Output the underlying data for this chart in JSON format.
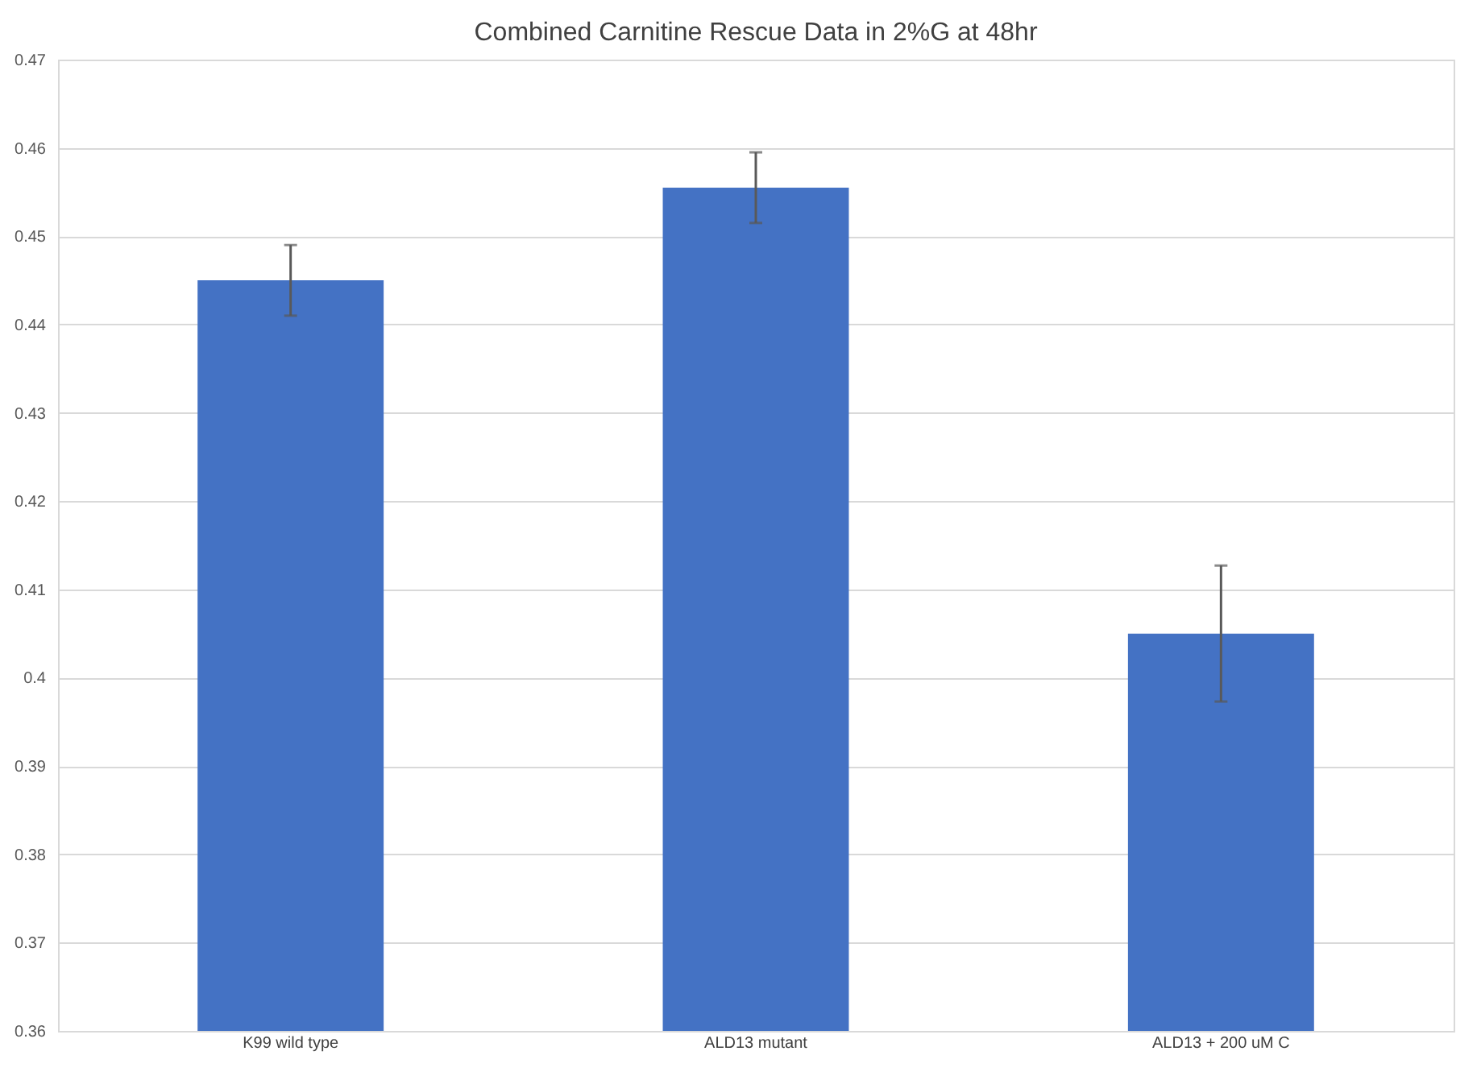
{
  "chart_data": {
    "type": "bar",
    "title": "Combined Carnitine Rescue Data in 2%G at 48hr",
    "categories": [
      "K99 wild type",
      "ALD13 mutant",
      "ALD13 + 200 uM C"
    ],
    "values": [
      0.445,
      0.4555,
      0.405
    ],
    "errors": [
      0.004,
      0.004,
      0.0077
    ],
    "color": "#4472c4",
    "ylim": [
      0.36,
      0.47
    ],
    "yticks": [
      0.36,
      0.37,
      0.38,
      0.39,
      0.4,
      0.41,
      0.42,
      0.43,
      0.44,
      0.45,
      0.46,
      0.47
    ],
    "grid": "y"
  }
}
